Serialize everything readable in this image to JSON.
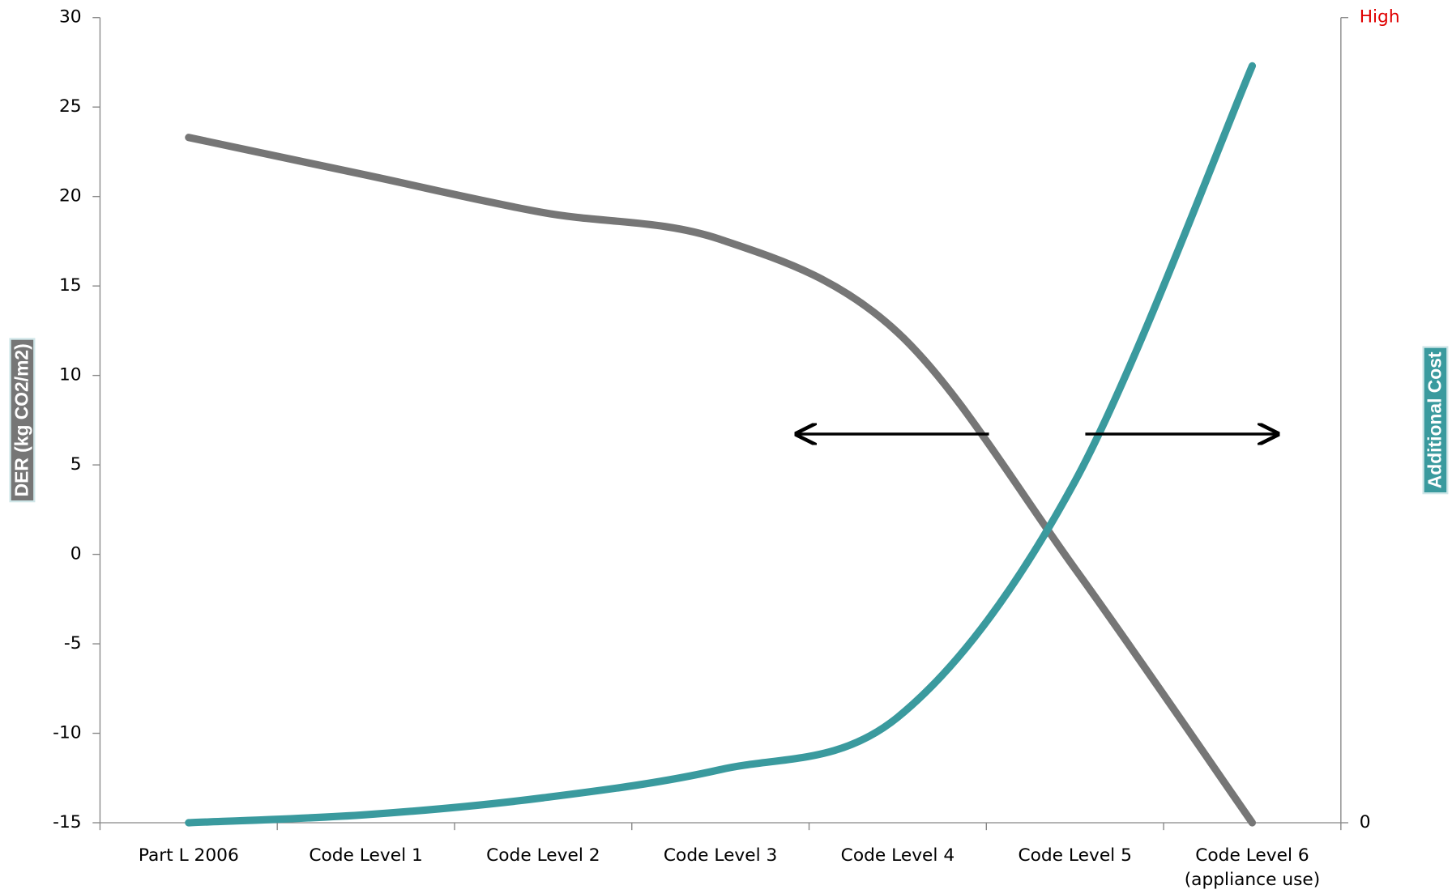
{
  "chart_data": {
    "type": "line",
    "categories": [
      "Part L 2006",
      "Code Level 1",
      "Code Level 2",
      "Code Level 3",
      "Code Level 4",
      "Code Level 5",
      "Code Level 6\n(appliance use)"
    ],
    "series": [
      {
        "name": "DER (kg CO2/m2)",
        "color": "#767676",
        "values": [
          23.3,
          21.2,
          19.1,
          17.6,
          12.4,
          -0.8,
          -15
        ]
      },
      {
        "name": "Additional Cost",
        "color": "#3a9a9e",
        "axis": "y2",
        "values": [
          0,
          1.0,
          3.1,
          6.6,
          13.1,
          42.4,
          94
        ]
      }
    ],
    "ylim": [
      -15,
      30
    ],
    "yticks": [
      -15,
      -10,
      -5,
      0,
      5,
      10,
      15,
      20,
      25,
      30
    ],
    "y2lim": [
      0,
      100
    ],
    "y2ticks": [
      0,
      {
        "value": 100,
        "label": "High"
      }
    ],
    "y2tick_color_top": "#e00000"
  }
}
